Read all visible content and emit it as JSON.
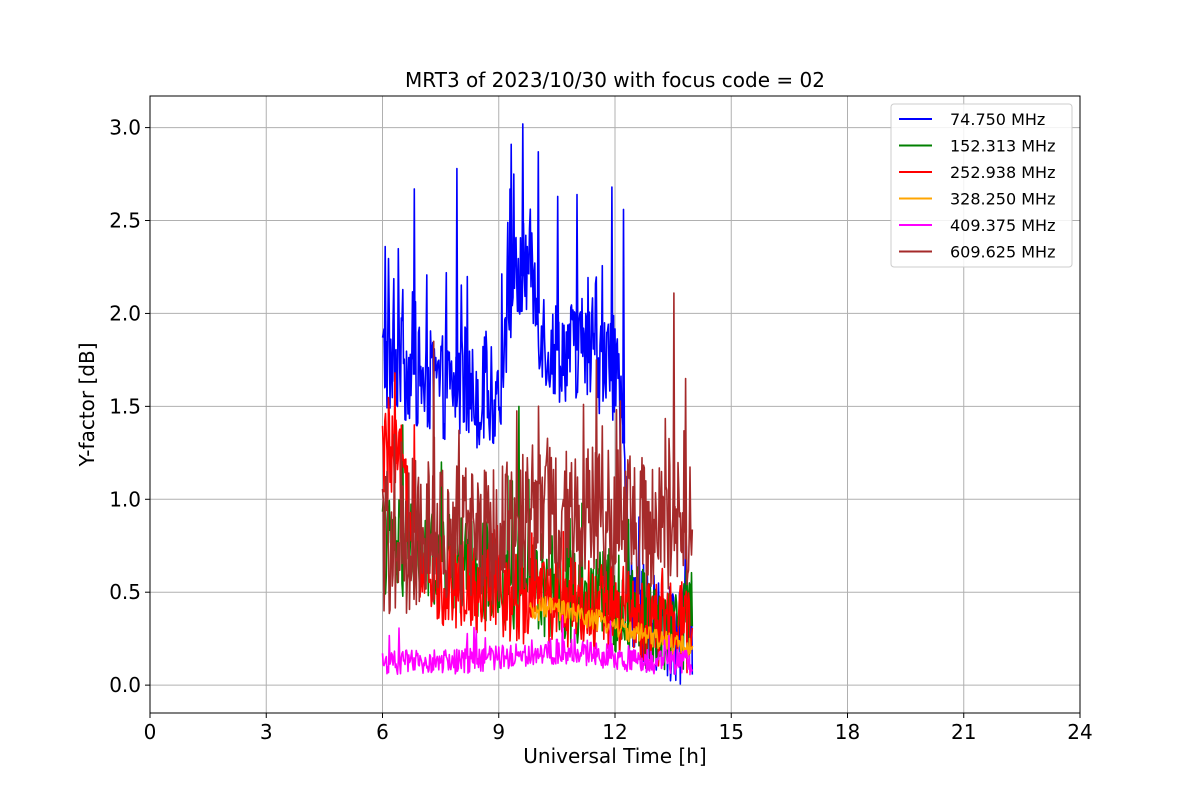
{
  "chart_data": {
    "type": "line",
    "title": "MRT3 of 2023/10/30 with focus code = 02",
    "xlabel": "Universal Time [h]",
    "ylabel": "Y-factor [dB]",
    "xlim": [
      0,
      24
    ],
    "ylim": [
      -0.15,
      3.17
    ],
    "xticks": [
      0,
      3,
      6,
      9,
      12,
      15,
      18,
      21,
      24
    ],
    "xtick_labels": [
      "0",
      "3",
      "6",
      "9",
      "12",
      "15",
      "18",
      "21",
      "24"
    ],
    "yticks": [
      0.0,
      0.5,
      1.0,
      1.5,
      2.0,
      2.5,
      3.0
    ],
    "ytick_labels": [
      "0.0",
      "0.5",
      "1.0",
      "1.5",
      "2.0",
      "2.5",
      "3.0"
    ],
    "grid": true,
    "legend_position": "top-right",
    "x_range_of_data": [
      6.0,
      14.0
    ],
    "series": [
      {
        "name": "74.750 MHz",
        "legend_label": " 74.750 MHz",
        "color": "#0000ff",
        "x": [
          6.0,
          6.5,
          7.0,
          7.5,
          8.0,
          8.5,
          9.0,
          9.3,
          9.6,
          9.8,
          10.0,
          10.3,
          10.6,
          11.0,
          11.5,
          12.0,
          12.2,
          12.4,
          12.8,
          13.2,
          13.6,
          14.0
        ],
        "y": [
          1.75,
          1.7,
          1.65,
          1.6,
          1.6,
          1.55,
          1.55,
          2.1,
          2.2,
          2.3,
          2.0,
          1.8,
          1.8,
          1.8,
          1.75,
          1.7,
          1.3,
          0.5,
          0.35,
          0.3,
          0.25,
          0.3
        ],
        "peaks": [
          [
            6.05,
            2.36
          ],
          [
            6.8,
            2.67
          ],
          [
            7.9,
            2.78
          ],
          [
            9.3,
            2.91
          ],
          [
            9.6,
            3.02
          ],
          [
            10.0,
            2.87
          ],
          [
            10.5,
            2.63
          ],
          [
            11.0,
            2.64
          ],
          [
            11.9,
            2.68
          ],
          [
            12.2,
            2.56
          ]
        ]
      },
      {
        "name": "152.313 MHz",
        "legend_label": "152.313 MHz",
        "color": "#008000",
        "x": [
          6.0,
          7.0,
          8.0,
          9.0,
          10.0,
          11.0,
          12.0,
          12.5,
          13.0,
          13.5,
          14.0
        ],
        "y": [
          0.75,
          0.7,
          0.65,
          0.6,
          0.55,
          0.5,
          0.45,
          0.4,
          0.35,
          0.35,
          0.35
        ],
        "peaks": [
          [
            6.5,
            1.4
          ],
          [
            7.5,
            1.2
          ],
          [
            9.5,
            1.5
          ],
          [
            11.8,
            0.7
          ],
          [
            13.9,
            0.55
          ]
        ]
      },
      {
        "name": "252.938 MHz",
        "legend_label": "252.938 MHz",
        "color": "#ff0000",
        "x": [
          6.0,
          6.5,
          7.0,
          8.0,
          9.0,
          10.0,
          11.0,
          12.0,
          13.0,
          14.0
        ],
        "y": [
          1.25,
          1.15,
          0.6,
          0.55,
          0.5,
          0.45,
          0.45,
          0.4,
          0.35,
          0.3
        ],
        "peaks": [
          [
            6.3,
            1.68
          ],
          [
            6.8,
            1.4
          ]
        ]
      },
      {
        "name": "328.250 MHz",
        "legend_label": "328.250 MHz",
        "color": "#ffa500",
        "x": [
          9.8,
          10.2,
          10.6,
          11.0,
          11.5,
          12.0,
          12.5,
          13.0,
          13.5,
          14.0
        ],
        "y": [
          0.38,
          0.42,
          0.4,
          0.38,
          0.35,
          0.32,
          0.28,
          0.25,
          0.22,
          0.2
        ]
      },
      {
        "name": "409.375 MHz",
        "legend_label": "409.375 MHz",
        "color": "#ff00ff",
        "x": [
          6.0,
          7.0,
          8.0,
          9.0,
          10.0,
          11.0,
          12.0,
          13.0,
          14.0
        ],
        "y": [
          0.12,
          0.12,
          0.13,
          0.15,
          0.18,
          0.18,
          0.15,
          0.13,
          0.12
        ]
      },
      {
        "name": "609.625 MHz",
        "legend_label": "609.625 MHz",
        "color": "#a52a2a",
        "x": [
          6.0,
          6.5,
          7.0,
          7.5,
          8.0,
          8.5,
          9.0,
          9.5,
          10.0,
          10.5,
          11.0,
          11.5,
          12.0,
          12.5,
          13.0,
          13.5,
          14.0
        ],
        "y": [
          0.75,
          0.75,
          0.8,
          0.8,
          0.8,
          0.8,
          0.8,
          0.85,
          0.9,
          0.9,
          0.9,
          0.9,
          0.9,
          0.85,
          0.85,
          0.85,
          0.8
        ],
        "peaks": [
          [
            7.3,
            1.85
          ],
          [
            11.5,
            1.75
          ],
          [
            13.5,
            2.11
          ],
          [
            13.8,
            1.65
          ]
        ]
      }
    ]
  }
}
